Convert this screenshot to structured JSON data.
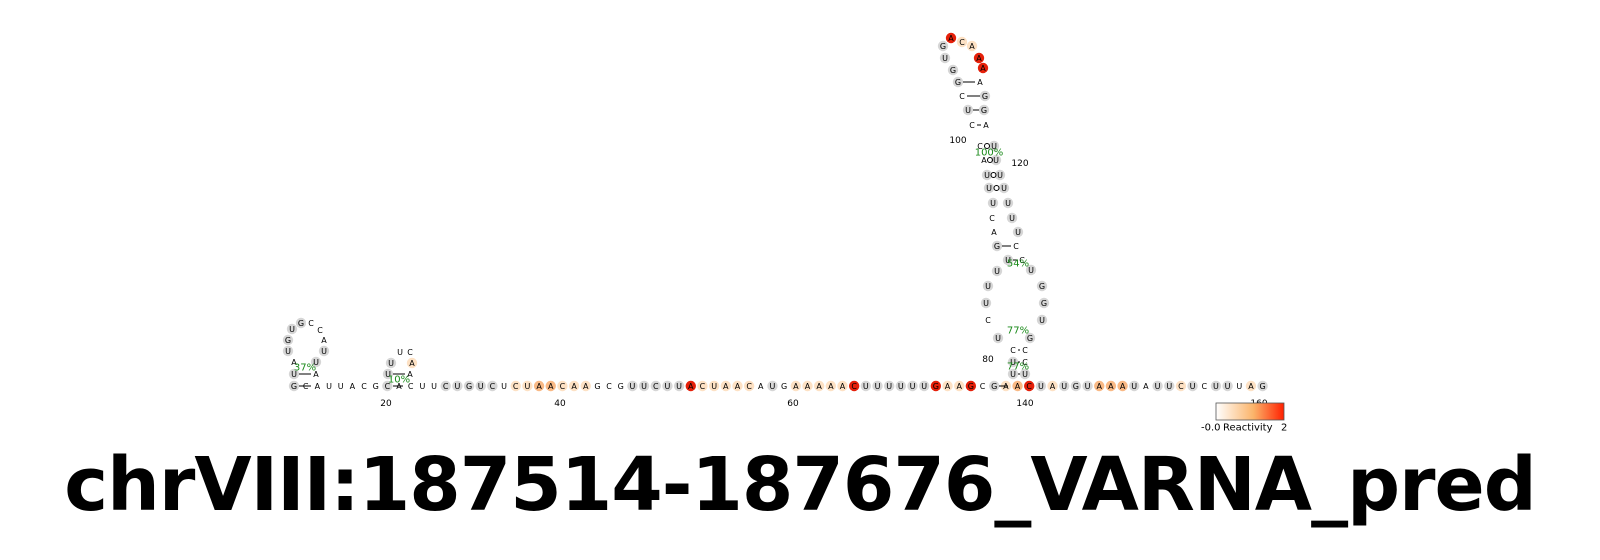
{
  "title": "chrVIII:187514-187676_VARNA_pred",
  "colors": {
    "none": "#ffffff",
    "low": "#d6d6d6",
    "mid_light": "#fde1c4",
    "mid": "#f9b985",
    "high": "#e5200a",
    "percent": "#1a8a1a"
  },
  "legend": {
    "min_label": "-0.0",
    "title": "Reactivity",
    "max_label": "2",
    "gradient_start": "#ffffff",
    "gradient_end": "#ff2000"
  },
  "index_labels": [
    "20",
    "40",
    "60",
    "80",
    "100",
    "120",
    "140",
    "160"
  ],
  "percent_labels": [
    "37%",
    "10%",
    "100%",
    "54%",
    "77%",
    "77%"
  ],
  "baseline_sequence": [
    [
      "G",
      "low"
    ],
    [
      "C",
      "none"
    ],
    [
      "A",
      "none"
    ],
    [
      "U",
      "none"
    ],
    [
      "U",
      "none"
    ],
    [
      "A",
      "none"
    ],
    [
      "C",
      "none"
    ],
    [
      "G",
      "none"
    ],
    [
      "C",
      "low"
    ],
    [
      "A",
      "none"
    ],
    [
      "C",
      "none"
    ],
    [
      "U",
      "none"
    ],
    [
      "U",
      "none"
    ],
    [
      "C",
      "low"
    ],
    [
      "U",
      "low"
    ],
    [
      "G",
      "low"
    ],
    [
      "U",
      "low"
    ],
    [
      "C",
      "low"
    ],
    [
      "U",
      "none"
    ],
    [
      "C",
      "mid_light"
    ],
    [
      "U",
      "mid_light"
    ],
    [
      "A",
      "mid"
    ],
    [
      "A",
      "mid"
    ],
    [
      "C",
      "mid_light"
    ],
    [
      "A",
      "mid_light"
    ],
    [
      "A",
      "mid_light"
    ],
    [
      "G",
      "none"
    ],
    [
      "C",
      "none"
    ],
    [
      "G",
      "none"
    ],
    [
      "U",
      "low"
    ],
    [
      "U",
      "low"
    ],
    [
      "C",
      "low"
    ],
    [
      "U",
      "low"
    ],
    [
      "U",
      "low"
    ],
    [
      "A",
      "high"
    ],
    [
      "C",
      "mid_light"
    ],
    [
      "U",
      "mid_light"
    ],
    [
      "A",
      "mid_light"
    ],
    [
      "A",
      "mid_light"
    ],
    [
      "C",
      "mid_light"
    ],
    [
      "A",
      "none"
    ],
    [
      "U",
      "low"
    ],
    [
      "G",
      "none"
    ],
    [
      "A",
      "mid_light"
    ],
    [
      "A",
      "mid_light"
    ],
    [
      "A",
      "mid_light"
    ],
    [
      "A",
      "mid_light"
    ],
    [
      "A",
      "mid_light"
    ],
    [
      "C",
      "high"
    ],
    [
      "U",
      "low"
    ],
    [
      "U",
      "low"
    ],
    [
      "U",
      "low"
    ],
    [
      "U",
      "low"
    ],
    [
      "U",
      "low"
    ],
    [
      "U",
      "low"
    ],
    [
      "G",
      "high"
    ],
    [
      "A",
      "mid_light"
    ],
    [
      "A",
      "mid_light"
    ],
    [
      "G",
      "high"
    ],
    [
      "C",
      "none"
    ],
    [
      "G",
      "low"
    ],
    [
      "A",
      "mid_light"
    ],
    [
      "A",
      "mid"
    ],
    [
      "C",
      "high"
    ],
    [
      "U",
      "low"
    ],
    [
      "A",
      "mid_light"
    ],
    [
      "U",
      "low"
    ],
    [
      "G",
      "low"
    ],
    [
      "U",
      "low"
    ],
    [
      "A",
      "mid"
    ],
    [
      "A",
      "mid"
    ],
    [
      "A",
      "mid"
    ],
    [
      "U",
      "low"
    ],
    [
      "A",
      "none"
    ],
    [
      "U",
      "low"
    ],
    [
      "U",
      "low"
    ],
    [
      "C",
      "mid_light"
    ],
    [
      "U",
      "low"
    ],
    [
      "C",
      "none"
    ],
    [
      "U",
      "low"
    ],
    [
      "U",
      "low"
    ],
    [
      "U",
      "none"
    ],
    [
      "A",
      "mid_light"
    ],
    [
      "G",
      "low"
    ]
  ],
  "hairpin1": [
    [
      "U",
      "low"
    ],
    [
      "A",
      "none"
    ],
    [
      "U",
      "low"
    ],
    [
      "G",
      "low"
    ],
    [
      "U",
      "low"
    ],
    [
      "G",
      "low"
    ],
    [
      "C",
      "none"
    ],
    [
      "C",
      "none"
    ],
    [
      "A",
      "none"
    ],
    [
      "U",
      "low"
    ],
    [
      "U",
      "low"
    ],
    [
      "A",
      "none"
    ]
  ],
  "hairpin2": [
    [
      "U",
      "low"
    ],
    [
      "U",
      "low"
    ],
    [
      "U",
      "none"
    ],
    [
      "C",
      "none"
    ],
    [
      "A",
      "mid_light"
    ],
    [
      "A",
      "none"
    ]
  ],
  "big_stem_left": [
    [
      "U",
      "low"
    ],
    [
      "U",
      "low"
    ],
    [
      "C",
      "none"
    ],
    [
      "U",
      "low"
    ],
    [
      "C",
      "none"
    ],
    [
      "U",
      "low"
    ],
    [
      "U",
      "low"
    ],
    [
      "U",
      "low"
    ],
    [
      "U",
      "low"
    ],
    [
      "G",
      "low"
    ],
    [
      "A",
      "none"
    ],
    [
      "C",
      "none"
    ],
    [
      "U",
      "low"
    ],
    [
      "U",
      "low"
    ],
    [
      "U",
      "low"
    ],
    [
      "A",
      "none"
    ],
    [
      "C",
      "none"
    ],
    [
      "C",
      "none"
    ],
    [
      "U",
      "low"
    ],
    [
      "C",
      "none"
    ],
    [
      "G",
      "low"
    ],
    [
      "G",
      "low"
    ],
    [
      "U",
      "low"
    ]
  ],
  "big_stem_right": [
    [
      "U",
      "low"
    ],
    [
      "C",
      "none"
    ],
    [
      "C",
      "none"
    ],
    [
      "G",
      "low"
    ],
    [
      "U",
      "low"
    ],
    [
      "G",
      "low"
    ],
    [
      "G",
      "low"
    ],
    [
      "U",
      "low"
    ],
    [
      "C",
      "none"
    ],
    [
      "C",
      "none"
    ],
    [
      "U",
      "low"
    ],
    [
      "U",
      "low"
    ],
    [
      "U",
      "low"
    ],
    [
      "U",
      "low"
    ],
    [
      "U",
      "low"
    ],
    [
      "U",
      "low"
    ],
    [
      "U",
      "low"
    ],
    [
      "A",
      "none"
    ],
    [
      "G",
      "low"
    ],
    [
      "G",
      "low"
    ],
    [
      "A",
      "none"
    ]
  ],
  "loop_top": [
    [
      "G",
      "low"
    ],
    [
      "A",
      "high"
    ],
    [
      "C",
      "mid_light"
    ],
    [
      "A",
      "mid_light"
    ],
    [
      "A",
      "high"
    ],
    [
      "A",
      "high"
    ]
  ]
}
